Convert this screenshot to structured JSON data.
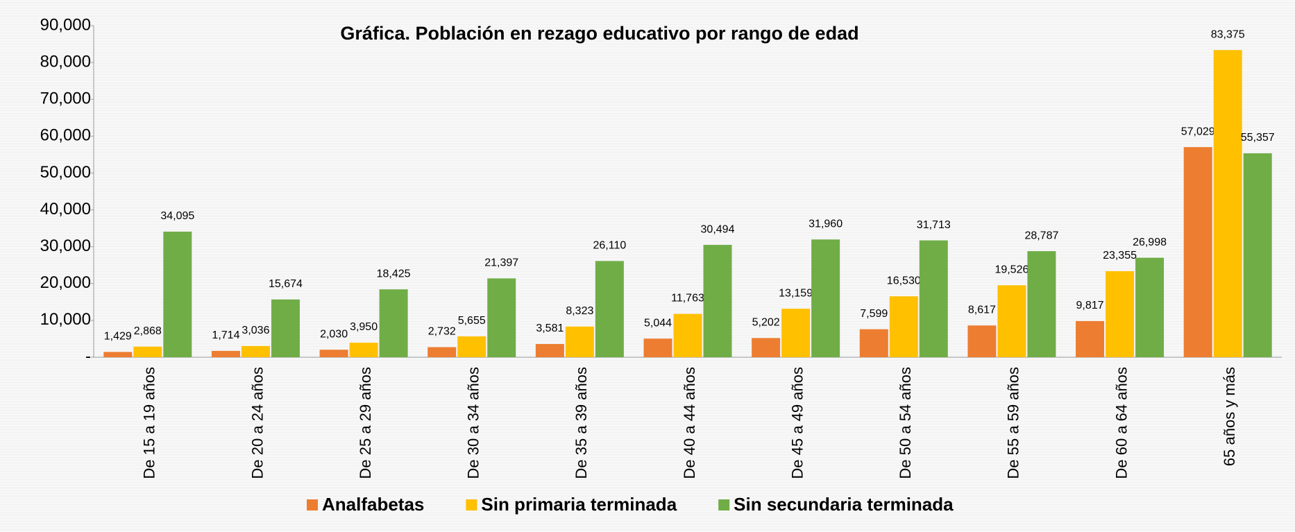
{
  "chart_data": {
    "type": "bar",
    "title": "Gráfica. Población en rezago educativo por rango de edad",
    "categories": [
      "De 15 a 19 años",
      "De 20 a 24 años",
      "De 25 a 29 años",
      "De 30 a 34 años",
      "De 35 a 39 años",
      "De 40 a 44 años",
      "De 45 a 49 años",
      "De 50 a 54 años",
      "De 55 a 59 años",
      "De 60 a 64 años",
      "65 años y más"
    ],
    "series": [
      {
        "name": "Analfabetas",
        "color": "#ed7d31",
        "values": [
          1429,
          1714,
          2030,
          2732,
          3581,
          5044,
          5202,
          7599,
          8617,
          9817,
          57029
        ],
        "value_labels": [
          "1,429",
          "1,714",
          "2,030",
          "2,732",
          "3,581",
          "5,044",
          "5,202",
          "7,599",
          "8,617",
          "9,817",
          "57,029"
        ]
      },
      {
        "name": "Sin primaria terminada",
        "color": "#ffc000",
        "values": [
          2868,
          3036,
          3950,
          5655,
          8323,
          11763,
          13159,
          16530,
          19526,
          23355,
          83375
        ],
        "value_labels": [
          "2,868",
          "3,036",
          "3,950",
          "5,655",
          "8,323",
          "11,763",
          "13,159",
          "16,530",
          "19,526",
          "23,355",
          "83,375"
        ]
      },
      {
        "name": "Sin secundaria terminada",
        "color": "#70ad47",
        "values": [
          34095,
          15674,
          18425,
          21397,
          26110,
          30494,
          31960,
          31713,
          28787,
          26998,
          55357
        ],
        "value_labels": [
          "34,095",
          "15,674",
          "18,425",
          "21,397",
          "26,110",
          "30,494",
          "31,960",
          "31,713",
          "28,787",
          "26,998",
          "55,357"
        ]
      }
    ],
    "ylim": [
      0,
      90000
    ],
    "yticks": [
      {
        "value": 0,
        "label": "-"
      },
      {
        "value": 10000,
        "label": "10,000"
      },
      {
        "value": 20000,
        "label": "20,000"
      },
      {
        "value": 30000,
        "label": "30,000"
      },
      {
        "value": 40000,
        "label": "40,000"
      },
      {
        "value": 50000,
        "label": "50,000"
      },
      {
        "value": 60000,
        "label": "60,000"
      },
      {
        "value": 70000,
        "label": "70,000"
      },
      {
        "value": 80000,
        "label": "80,000"
      },
      {
        "value": 90000,
        "label": "90,000"
      }
    ],
    "grid": false,
    "legend": "bottom"
  }
}
